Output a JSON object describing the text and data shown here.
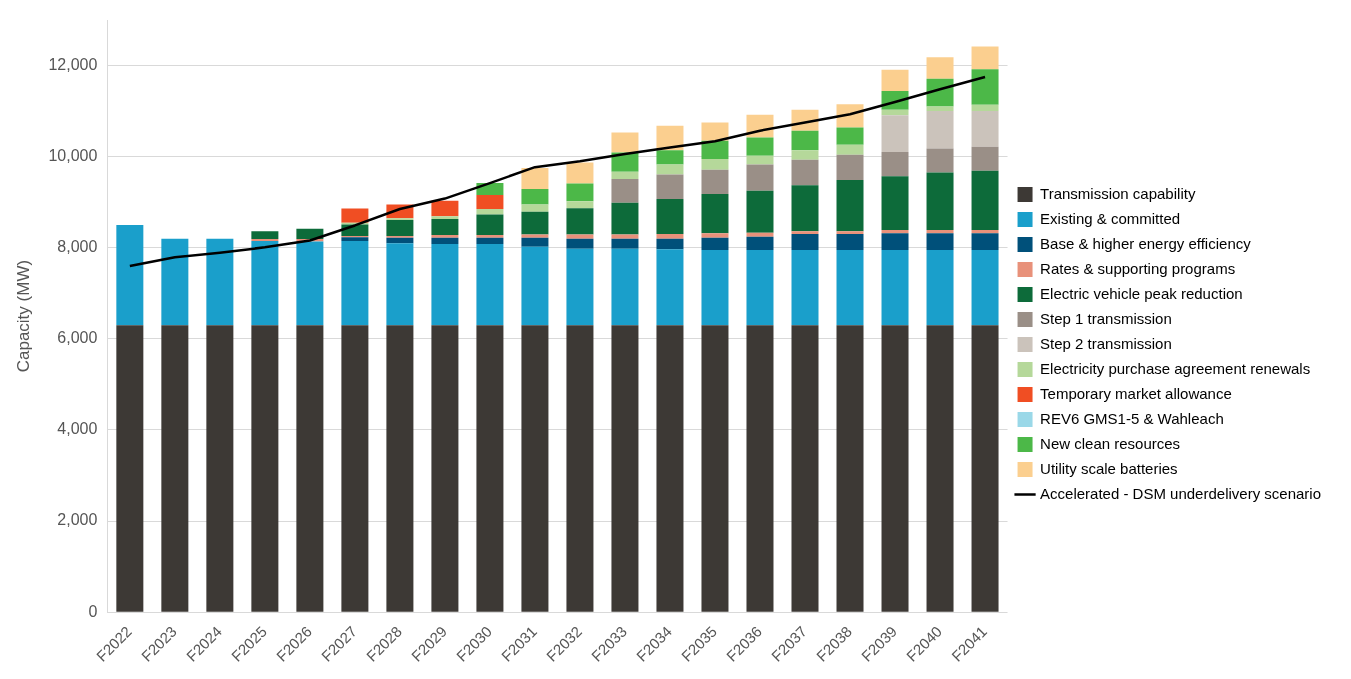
{
  "chart_data": {
    "type": "bar",
    "stacked": true,
    "ylabel": "Capacity (MW)",
    "ylim": [
      0,
      13000
    ],
    "yticks": [
      0,
      {
        "value": 2000,
        "label": "2,000"
      },
      {
        "value": 4000,
        "label": "4,000"
      },
      {
        "value": 6000,
        "label": "6,000"
      },
      {
        "value": 8000,
        "label": "8,000"
      },
      {
        "value": 10000,
        "label": "10,000"
      },
      {
        "value": 12000,
        "label": "12,000"
      }
    ],
    "grid": "y",
    "legend": "right",
    "marker": "none",
    "line_style": "solid",
    "categories": [
      "F2022",
      "F2023",
      "F2024",
      "F2025",
      "F2026",
      "F2027",
      "F2028",
      "F2029",
      "F2030",
      "F2031",
      "F2032",
      "F2033",
      "F2034",
      "F2035",
      "F2036",
      "F2037",
      "F2038",
      "F2039",
      "F2040",
      "F2041"
    ],
    "series": [
      {
        "name": "Transmission capability",
        "color": "#3d3935",
        "values": [
          6300,
          6300,
          6300,
          6300,
          6300,
          6300,
          6300,
          6300,
          6300,
          6300,
          6300,
          6300,
          6300,
          6300,
          6300,
          6300,
          6300,
          6300,
          6300,
          6300
        ]
      },
      {
        "name": "Existing & committed",
        "color": "#1a9fcb",
        "values": [
          2200,
          1900,
          1900,
          1850,
          1840,
          1850,
          1800,
          1780,
          1780,
          1720,
          1680,
          1680,
          1670,
          1650,
          1650,
          1650,
          1650,
          1650,
          1650,
          1650
        ]
      },
      {
        "name": "Base & higher energy efficiency",
        "color": "#00507a",
        "values": [
          0,
          0,
          0,
          0,
          0,
          80,
          120,
          140,
          140,
          200,
          220,
          220,
          230,
          270,
          290,
          350,
          350,
          370,
          370,
          370
        ]
      },
      {
        "name": "Rates & supporting programs",
        "color": "#e8917a",
        "values": [
          0,
          0,
          0,
          40,
          50,
          30,
          40,
          60,
          60,
          70,
          90,
          90,
          100,
          100,
          90,
          60,
          60,
          70,
          70,
          70
        ]
      },
      {
        "name": "Electric vehicle peak reduction",
        "color": "#0d6b3a",
        "values": [
          0,
          0,
          0,
          170,
          230,
          250,
          350,
          350,
          450,
          500,
          580,
          700,
          770,
          860,
          920,
          1010,
          1130,
          1180,
          1260,
          1300
        ]
      },
      {
        "name": "Step 1 transmission",
        "color": "#9a8f87",
        "values": [
          0,
          0,
          0,
          0,
          0,
          0,
          0,
          0,
          0,
          0,
          0,
          520,
          540,
          530,
          580,
          560,
          550,
          530,
          530,
          530
        ]
      },
      {
        "name": "Step 2 transmission",
        "color": "#cbc3bb",
        "values": [
          0,
          0,
          0,
          0,
          0,
          0,
          0,
          0,
          0,
          0,
          0,
          0,
          0,
          0,
          0,
          0,
          0,
          810,
          820,
          780
        ]
      },
      {
        "name": "Electricity purchase agreement renewals",
        "color": "#b5d89a",
        "values": [
          0,
          0,
          0,
          0,
          0,
          40,
          40,
          60,
          120,
          160,
          150,
          160,
          220,
          240,
          190,
          210,
          220,
          120,
          100,
          140
        ]
      },
      {
        "name": "Temporary market allowance",
        "color": "#f04e23",
        "values": [
          0,
          0,
          0,
          0,
          0,
          310,
          300,
          340,
          310,
          0,
          0,
          0,
          0,
          0,
          0,
          0,
          0,
          0,
          0,
          0
        ]
      },
      {
        "name": "REV6 GMS1-5 & Wahleach",
        "color": "#9ad8e8",
        "values": [
          0,
          0,
          0,
          0,
          0,
          0,
          0,
          0,
          0,
          0,
          0,
          0,
          0,
          0,
          0,
          0,
          0,
          0,
          0,
          0
        ]
      },
      {
        "name": "New clean resources",
        "color": "#4cb848",
        "values": [
          0,
          0,
          0,
          0,
          0,
          0,
          0,
          0,
          260,
          340,
          390,
          420,
          310,
          400,
          400,
          430,
          380,
          410,
          610,
          780
        ]
      },
      {
        "name": "Utility scale batteries",
        "color": "#fbcf8f",
        "values": [
          0,
          0,
          0,
          0,
          0,
          0,
          0,
          0,
          0,
          460,
          460,
          440,
          540,
          400,
          500,
          460,
          510,
          470,
          470,
          500
        ]
      },
      {
        "name": "Accelerated - DSM underdelivery scenario",
        "type": "line",
        "color": "#000000",
        "values": [
          7600,
          7790,
          7890,
          8010,
          8160,
          8490,
          8850,
          9080,
          9420,
          9770,
          9900,
          10060,
          10200,
          10340,
          10570,
          10750,
          10930,
          11200,
          11480,
          11750
        ]
      }
    ]
  }
}
